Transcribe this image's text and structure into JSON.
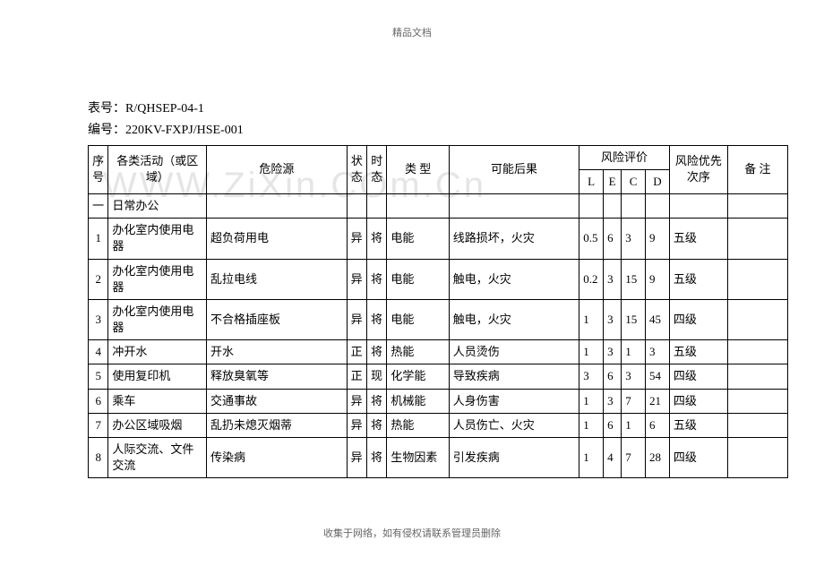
{
  "header_text": "精品文档",
  "watermark_text": "WWW.ZiXin.COm.Cn",
  "meta": {
    "table_no_label": "表号：",
    "table_no_value": "R/QHSEP-04-1",
    "serial_label": "编号：",
    "serial_value": "220KV-FXPJ/HSE-001"
  },
  "headers": {
    "seq": "序号",
    "activity": "各类活动（或区域）",
    "hazard": "危险源",
    "state": "状态",
    "time": "时态",
    "type": "类  型",
    "consequence": "可能后果",
    "risk_eval": "风险评价",
    "l": "L",
    "e": "E",
    "c": "C",
    "d": "D",
    "priority": "风险优先次序",
    "remark": "备    注"
  },
  "section": {
    "seq": "一",
    "title": "日常办公"
  },
  "rows": [
    {
      "seq": "1",
      "activity": "办化室内使用电器",
      "hazard": "超负荷用电",
      "state": "异",
      "time": "将",
      "type": "电能",
      "consequence": "线路损坏，火灾",
      "l": "0.5",
      "e": "6",
      "c": "3",
      "d": "9",
      "priority": "五级",
      "remark": ""
    },
    {
      "seq": "2",
      "activity": "办化室内使用电器",
      "hazard": "乱拉电线",
      "state": "异",
      "time": "将",
      "type": "电能",
      "consequence": "触电，火灾",
      "l": "0.2",
      "e": "3",
      "c": "15",
      "d": "9",
      "priority": "五级",
      "remark": ""
    },
    {
      "seq": "3",
      "activity": "办化室内使用电器",
      "hazard": "不合格插座板",
      "state": "异",
      "time": "将",
      "type": "电能",
      "consequence": "触电，火灾",
      "l": "1",
      "e": "3",
      "c": "15",
      "d": "45",
      "priority": "四级",
      "remark": ""
    },
    {
      "seq": "4",
      "activity": "冲开水",
      "hazard": "开水",
      "state": "正",
      "time": "将",
      "type": "热能",
      "consequence": "人员烫伤",
      "l": "1",
      "e": "3",
      "c": "1",
      "d": "3",
      "priority": "五级",
      "remark": ""
    },
    {
      "seq": "5",
      "activity": "使用复印机",
      "hazard": "释放臭氧等",
      "state": "正",
      "time": "现",
      "type": "化学能",
      "consequence": "导致疾病",
      "l": "3",
      "e": "6",
      "c": "3",
      "d": "54",
      "priority": "四级",
      "remark": ""
    },
    {
      "seq": "6",
      "activity": "乘车",
      "hazard": "交通事故",
      "state": "异",
      "time": "将",
      "type": "机械能",
      "consequence": "人身伤害",
      "l": "1",
      "e": "3",
      "c": "7",
      "d": "21",
      "priority": "四级",
      "remark": ""
    },
    {
      "seq": "7",
      "activity": "办公区域吸烟",
      "hazard": "乱扔未熄灭烟蒂",
      "state": "异",
      "time": "将",
      "type": "热能",
      "consequence": "人员伤亡、火灾",
      "l": "1",
      "e": "6",
      "c": "1",
      "d": "6",
      "priority": "五级",
      "remark": ""
    },
    {
      "seq": "8",
      "activity": "人际交流、文件交流",
      "hazard": "传染病",
      "state": "异",
      "time": "将",
      "type": "生物因素",
      "consequence": "引发疾病",
      "l": "1",
      "e": "4",
      "c": "7",
      "d": "28",
      "priority": "四级",
      "remark": ""
    }
  ],
  "footer_text": "收集于网络，如有侵权请联系管理员删除"
}
